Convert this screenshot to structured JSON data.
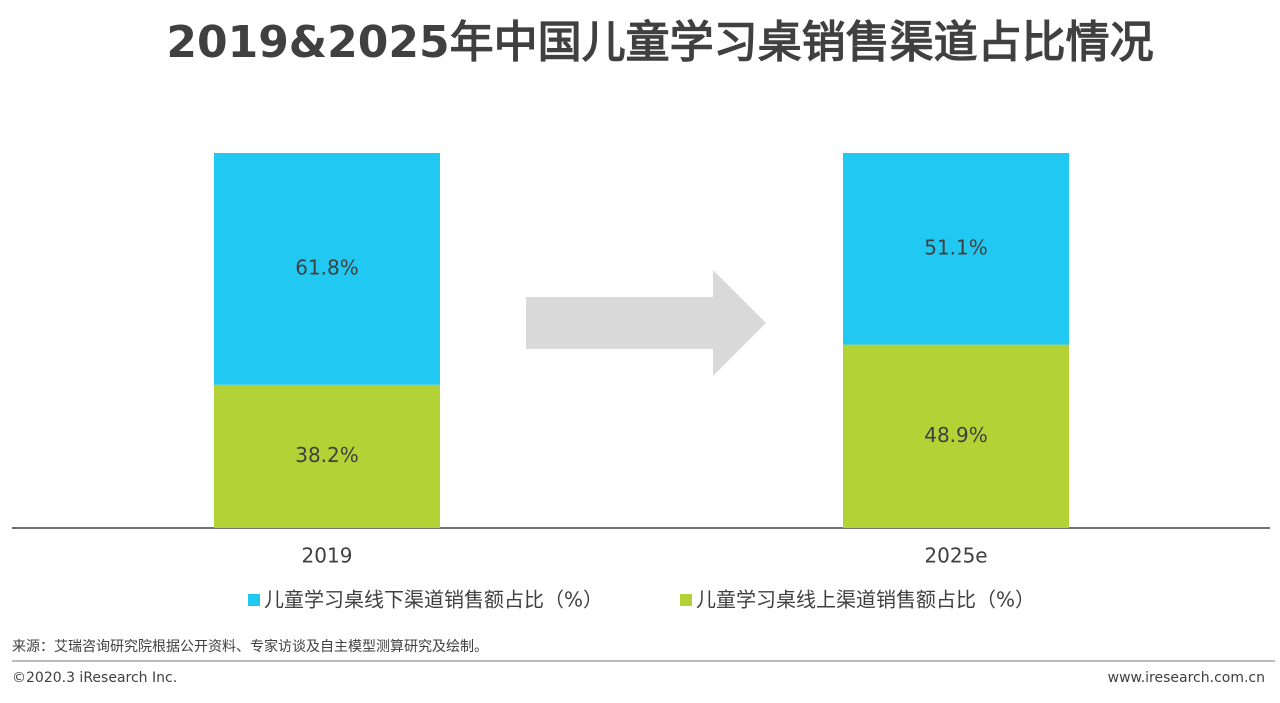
{
  "chart_data": {
    "type": "bar",
    "stacked": true,
    "title": "2019&2025年中国儿童学习桌销售渠道占比情况",
    "categories": [
      "2019",
      "2025e"
    ],
    "series": [
      {
        "name": "儿童学习桌线下渠道销售额占比（%）",
        "color": "#21c8f1",
        "values": [
          61.8,
          51.1
        ],
        "value_labels": [
          "61.8%",
          "51.1%"
        ]
      },
      {
        "name": "儿童学习桌线上渠道销售额占比（%）",
        "color": "#b2d235",
        "values": [
          38.2,
          48.9
        ],
        "value_labels": [
          "38.2%",
          "48.9%"
        ]
      }
    ],
    "ylim": [
      0,
      100
    ],
    "legend": "bottom"
  },
  "footer": {
    "source": "来源：艾瑞咨询研究院根据公开资料、专家访谈及自主模型测算研究及绘制。",
    "copyright": "©2020.3 iResearch Inc.",
    "website": "www.iresearch.com.cn"
  }
}
